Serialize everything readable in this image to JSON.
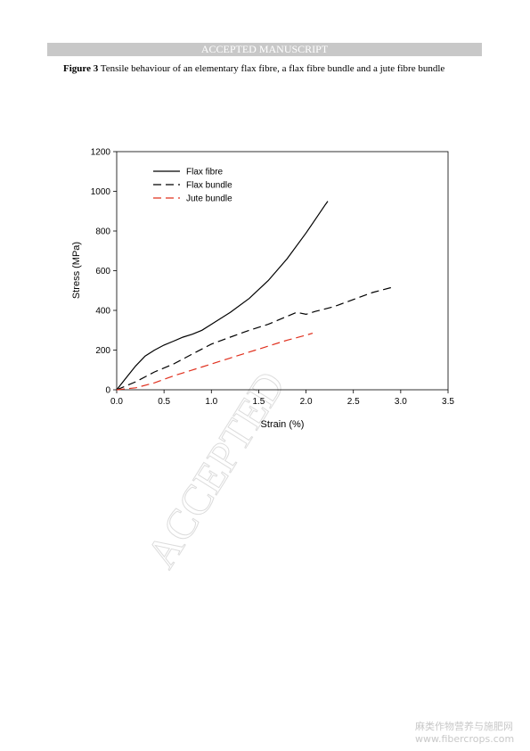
{
  "header": {
    "title": "ACCEPTED MANUSCRIPT"
  },
  "caption": {
    "label": "Figure 3",
    "text": "Tensile behaviour of an elementary flax fibre, a flax fibre bundle and a jute fibre bundle"
  },
  "chart_data": {
    "type": "line",
    "x_label": "Strain (%)",
    "y_label": "Stress (MPa)",
    "xlim": [
      0,
      3.5
    ],
    "ylim": [
      0,
      1200
    ],
    "xticks": [
      {
        "value": 0,
        "label": "0.0"
      },
      {
        "value": 0.5,
        "label": "0.5"
      },
      {
        "value": 1,
        "label": "1.0"
      },
      {
        "value": 1.5,
        "label": "1.5"
      },
      {
        "value": 2,
        "label": "2.0"
      },
      {
        "value": 2.5,
        "label": "2.5"
      },
      {
        "value": 3,
        "label": "3.0"
      },
      {
        "value": 3.5,
        "label": "3.5"
      }
    ],
    "yticks": [
      0,
      200,
      400,
      600,
      800,
      1000,
      1200
    ],
    "legend": "top-left",
    "series": [
      {
        "name": "Flax fibre",
        "color": "#000000",
        "dash": "solid",
        "x": [
          0,
          0.1,
          0.2,
          0.3,
          0.4,
          0.5,
          0.6,
          0.7,
          0.8,
          0.9,
          1.0,
          1.2,
          1.4,
          1.6,
          1.8,
          2.0,
          2.1,
          2.2,
          2.23
        ],
        "values": [
          0,
          60,
          120,
          170,
          200,
          225,
          245,
          265,
          280,
          300,
          330,
          390,
          460,
          550,
          660,
          790,
          860,
          930,
          950
        ]
      },
      {
        "name": "Flax bundle",
        "color": "#000000",
        "dash": "dashed",
        "x": [
          0,
          0.2,
          0.4,
          0.6,
          0.8,
          1.0,
          1.2,
          1.4,
          1.6,
          1.8,
          1.9,
          2.0,
          2.1,
          2.3,
          2.5,
          2.7,
          2.9
        ],
        "values": [
          0,
          40,
          90,
          130,
          180,
          230,
          265,
          300,
          330,
          370,
          390,
          380,
          395,
          420,
          455,
          490,
          515
        ]
      },
      {
        "name": "Jute bundle",
        "color": "#e0301e",
        "dash": "dashed",
        "x": [
          0,
          0.2,
          0.4,
          0.6,
          0.8,
          1.0,
          1.2,
          1.4,
          1.6,
          1.8,
          2.0,
          2.07
        ],
        "values": [
          0,
          10,
          35,
          70,
          100,
          130,
          160,
          190,
          220,
          250,
          275,
          285
        ]
      }
    ]
  },
  "watermark": {
    "text": "ACCEPTED"
  },
  "site_mark": {
    "name": "麻类作物营养与施肥网",
    "url": "www.fibercrops.com"
  }
}
